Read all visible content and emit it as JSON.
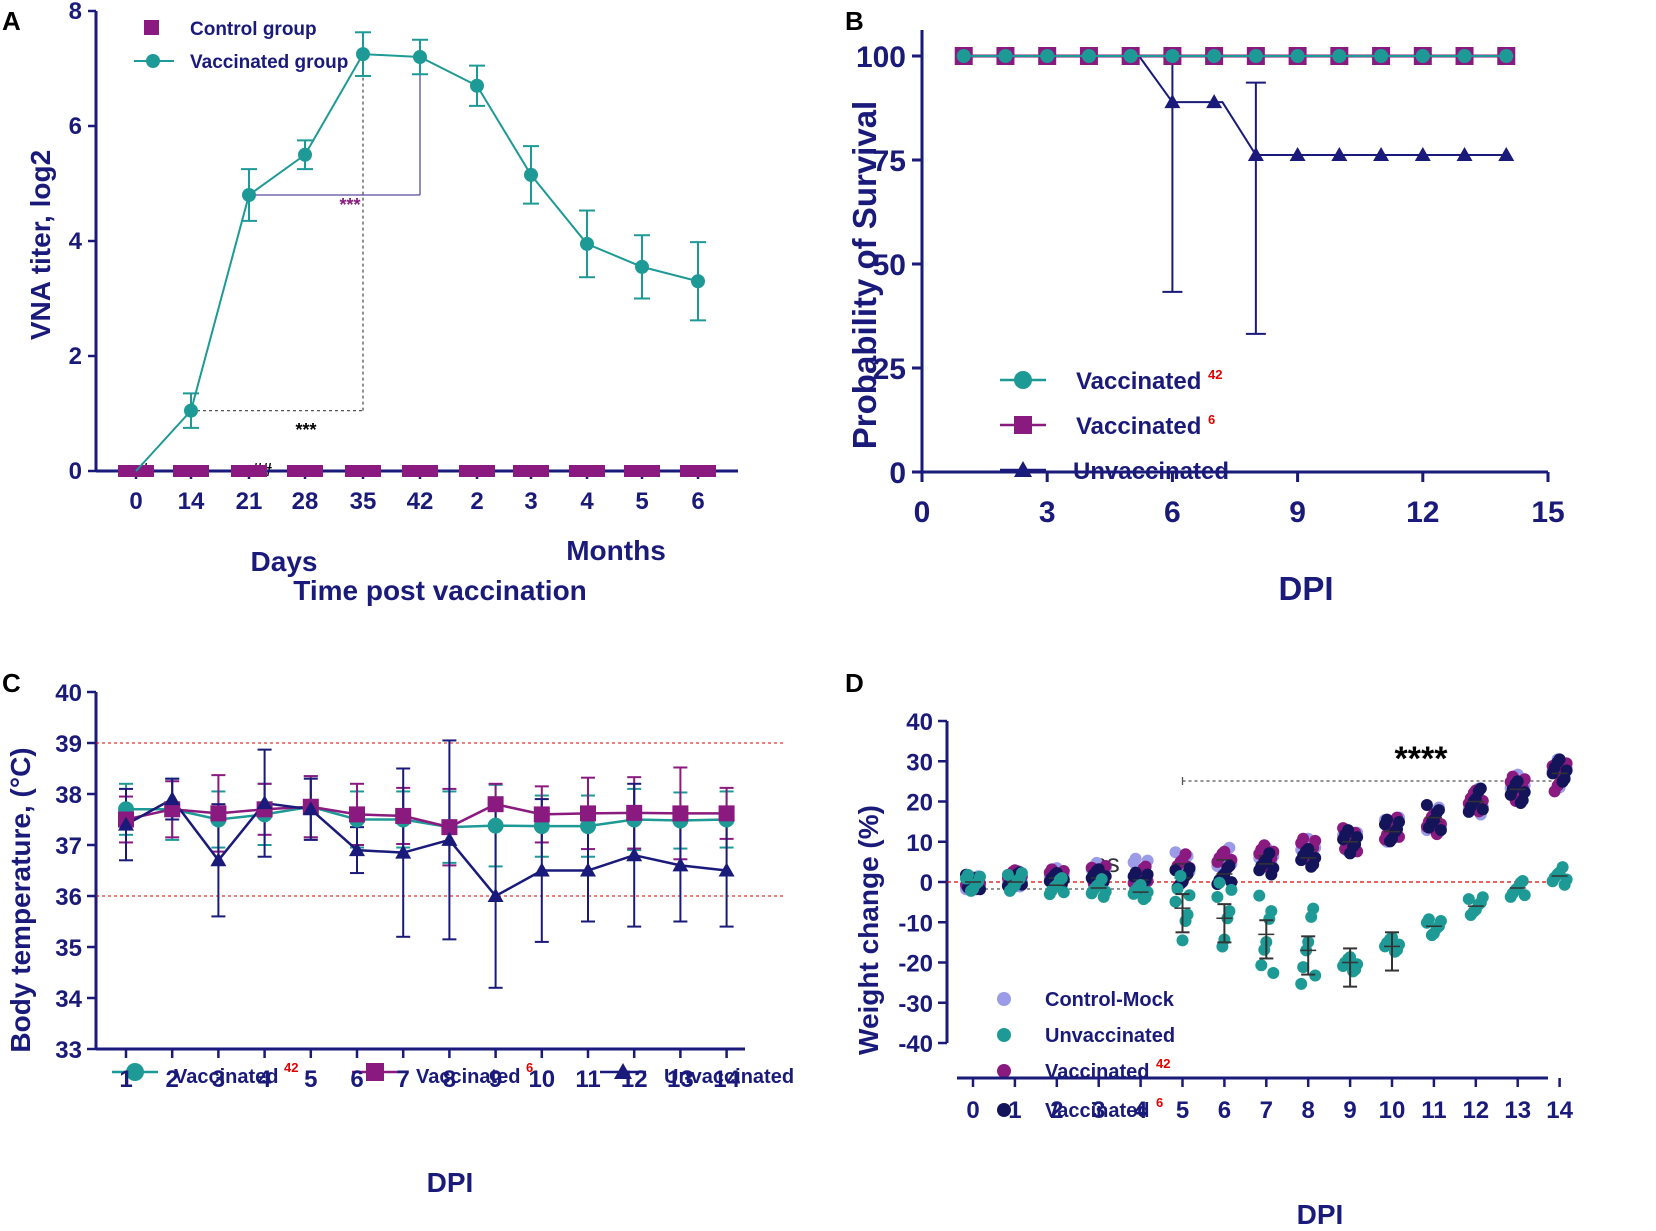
{
  "colors": {
    "navy": "#1a1a7a",
    "teal": "#1e9a96",
    "purple": "#8a1a7f",
    "red": "#e00000",
    "lightpurple": "#9b9be8",
    "darknavy": "#14145a"
  },
  "chart_data": [
    {
      "panel": "A",
      "type": "line",
      "ylabel": "VNA titer, log2",
      "xlabel": "Time post vaccination",
      "xgroups": [
        "Days",
        "Months"
      ],
      "categories": [
        "0",
        "14",
        "21",
        "28",
        "35",
        "42",
        "2",
        "3",
        "4",
        "5",
        "6"
      ],
      "ylim": [
        0,
        8
      ],
      "yticks": [
        "0",
        "2",
        "4",
        "6",
        "8"
      ],
      "series": [
        {
          "name": "Control group",
          "marker": "square",
          "values": [
            0,
            0,
            0,
            0,
            0,
            0,
            0,
            0,
            0,
            0,
            0
          ]
        },
        {
          "name": "Vaccinated group",
          "marker": "circle",
          "values": [
            0,
            1.05,
            4.8,
            5.5,
            7.25,
            7.2,
            6.7,
            5.15,
            3.95,
            3.55,
            3.3
          ],
          "errors": [
            0,
            0.3,
            0.45,
            0.25,
            0.38,
            0.3,
            0.35,
            0.5,
            0.58,
            0.55,
            0.68
          ]
        }
      ],
      "annotations": [
        "#",
        "##",
        "***",
        "***"
      ]
    },
    {
      "panel": "B",
      "type": "line",
      "ylabel": "Probability of Survival",
      "xlabel": "DPI",
      "xlim": [
        0,
        15
      ],
      "xticks": [
        "0",
        "3",
        "6",
        "9",
        "12",
        "15"
      ],
      "ylim": [
        0,
        100
      ],
      "yticks": [
        "0",
        "25",
        "50",
        "75",
        "100"
      ],
      "x": [
        1,
        2,
        3,
        4,
        5,
        6,
        7,
        8,
        9,
        10,
        11,
        12,
        13,
        14
      ],
      "series": [
        {
          "name": "Vaccinated",
          "sup": "42",
          "marker": "circle",
          "values": [
            100,
            100,
            100,
            100,
            100,
            100,
            100,
            100,
            100,
            100,
            100,
            100,
            100,
            100
          ]
        },
        {
          "name": "Vaccinated",
          "sup": "6",
          "marker": "square",
          "values": [
            100,
            100,
            100,
            100,
            100,
            100,
            100,
            100,
            100,
            100,
            100,
            100,
            100,
            100
          ]
        },
        {
          "name": "Unvaccinated",
          "marker": "triangle",
          "values": [
            100,
            100,
            100,
            100,
            100,
            88.9,
            88.9,
            76.2,
            76.2,
            76.2,
            76.2,
            76.2,
            76.2,
            76.2
          ]
        }
      ],
      "error_bars": [
        {
          "x": 6,
          "low": 43.3,
          "high": 100
        },
        {
          "x": 8,
          "low": 33.2,
          "high": 93.6
        }
      ]
    },
    {
      "panel": "C",
      "type": "line",
      "ylabel": "Body temperature, (°C)",
      "xlabel": "DPI",
      "categories": [
        "1",
        "2",
        "3",
        "4",
        "5",
        "6",
        "7",
        "8",
        "9",
        "10",
        "11",
        "12",
        "13",
        "14"
      ],
      "ylim": [
        33,
        40
      ],
      "yticks": [
        "33",
        "34",
        "35",
        "36",
        "37",
        "38",
        "39",
        "40"
      ],
      "reference_lines": [
        39,
        36
      ],
      "series": [
        {
          "name": "Vaccinated",
          "sup": "42",
          "marker": "circle",
          "values": [
            37.7,
            37.7,
            37.5,
            37.6,
            37.75,
            37.5,
            37.5,
            37.35,
            37.38,
            37.37,
            37.37,
            37.5,
            37.48,
            37.5
          ],
          "errors": [
            0.5,
            0.6,
            0.55,
            0.6,
            0.6,
            0.55,
            0.55,
            0.7,
            0.8,
            0.6,
            0.6,
            0.6,
            0.55,
            0.55
          ]
        },
        {
          "name": "Vaccinated",
          "sup": "6",
          "marker": "square",
          "values": [
            37.5,
            37.7,
            37.62,
            37.7,
            37.75,
            37.6,
            37.57,
            37.35,
            37.8,
            37.6,
            37.62,
            37.63,
            37.62,
            37.62
          ],
          "errors": [
            0.45,
            0.55,
            0.75,
            0.5,
            0.6,
            0.6,
            0.55,
            0.75,
            0.4,
            0.55,
            0.7,
            0.7,
            0.9,
            0.5
          ]
        },
        {
          "name": "Unvaccinated",
          "marker": "triangle",
          "values": [
            37.4,
            37.9,
            36.7,
            37.82,
            37.7,
            36.9,
            36.85,
            37.1,
            36.0,
            36.5,
            36.5,
            36.8,
            36.6,
            36.5
          ],
          "errors": [
            0.7,
            0.4,
            1.1,
            1.05,
            0.6,
            0.45,
            1.65,
            1.95,
            1.8,
            1.4,
            1.0,
            1.4,
            1.1,
            1.1
          ]
        }
      ]
    },
    {
      "panel": "D",
      "type": "scatter",
      "ylabel": "Weight change (%)",
      "xlabel": "DPI",
      "categories": [
        "0",
        "1",
        "2",
        "3",
        "4",
        "5",
        "6",
        "7",
        "8",
        "9",
        "10",
        "11",
        "12",
        "13",
        "14"
      ],
      "ylim": [
        -40,
        40
      ],
      "yticks": [
        "-40",
        "-30",
        "-20",
        "-10",
        "0",
        "10",
        "20",
        "30",
        "40"
      ],
      "reference_lines": [
        0
      ],
      "significance": [
        {
          "label": "ns",
          "from": 0,
          "to": 4
        },
        {
          "label": "****",
          "from": 5,
          "to": 14
        }
      ],
      "series": [
        {
          "name": "Control-Mock",
          "means": [
            0,
            0.8,
            1.8,
            2.6,
            3.5,
            5,
            6,
            7,
            8,
            10.5,
            13,
            16,
            20,
            24,
            27
          ]
        },
        {
          "name": "Unvaccinated",
          "means": [
            0,
            0,
            -0.8,
            -1.5,
            -2.5,
            -6.5,
            -9,
            -13,
            -17,
            -20,
            -16,
            -11,
            -6,
            -1.5,
            1.5
          ]
        },
        {
          "name": "Vaccinated",
          "sup": "42",
          "means": [
            0,
            1,
            1.5,
            1.8,
            2,
            4.5,
            5.5,
            6.5,
            8,
            10.5,
            13,
            15,
            19.5,
            23.5,
            26
          ]
        },
        {
          "name": "Vaccinated",
          "sup": "6",
          "means": [
            0,
            0.5,
            1,
            1,
            0.5,
            1,
            2,
            4.5,
            6,
            10,
            12.5,
            16,
            20,
            23,
            27
          ]
        }
      ]
    }
  ],
  "panelA": {
    "label": "A",
    "legend": [
      "Control group",
      "Vaccinated group"
    ],
    "group_days": "Days",
    "group_months": "Months",
    "xlabel": "Time post vaccination",
    "ylabel": "VNA titer, log2",
    "annot_hash": "#",
    "annot_dhash": "##",
    "annot_star1": "***",
    "annot_star2": "***"
  },
  "panelB": {
    "label": "B",
    "legend": [
      "Vaccinated",
      "Vaccinated",
      "Unvaccinated"
    ],
    "legend_sup": [
      "42",
      "6"
    ],
    "xlabel": "DPI",
    "ylabel": "Probability of Survival"
  },
  "panelC": {
    "label": "C",
    "legend": [
      "Vaccinated",
      "Vaccinated",
      "Unvaccinated"
    ],
    "legend_sup": [
      "42",
      "6"
    ],
    "xlabel": "DPI",
    "ylabel": "Body temperature, (°C)"
  },
  "panelD": {
    "label": "D",
    "legend": [
      "Control-Mock",
      "Unvaccinated",
      "Vaccinated",
      "Vaccinated"
    ],
    "legend_sup": [
      "42",
      "6"
    ],
    "xlabel": "DPI",
    "ylabel": "Weight change (%)",
    "ns": "ns",
    "stars": "****"
  }
}
